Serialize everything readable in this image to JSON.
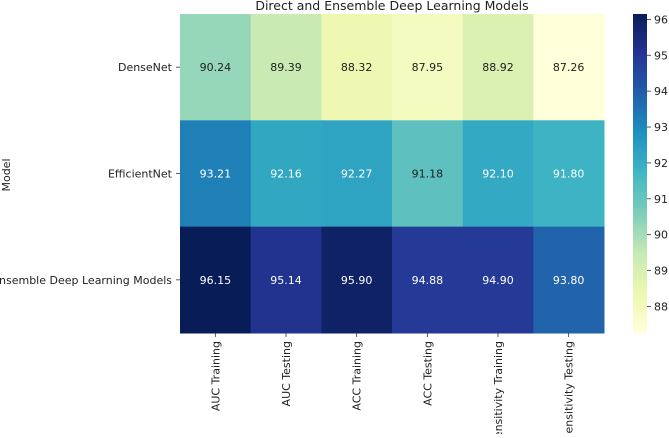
{
  "chart_data": {
    "type": "heatmap",
    "title": "Direct and Ensemble Deep Learning Models",
    "ylabel": "Model",
    "xlabel": "",
    "rows": [
      "DenseNet",
      "EfficientNet",
      "Ensemble Deep Learning Models"
    ],
    "columns": [
      "AUC Training",
      "AUC Testing",
      "ACC Training",
      "ACC Testing",
      "Sensitivity Training",
      "Sensitivity Testing"
    ],
    "values": [
      [
        90.24,
        89.39,
        88.32,
        87.95,
        88.92,
        87.26
      ],
      [
        93.21,
        92.16,
        92.27,
        91.18,
        92.1,
        91.8
      ],
      [
        96.15,
        95.14,
        95.9,
        94.88,
        94.9,
        93.8
      ]
    ],
    "value_labels": [
      [
        "90.24",
        "89.39",
        "88.32",
        "87.95",
        "88.92",
        "87.26"
      ],
      [
        "93.21",
        "92.16",
        "92.27",
        "91.18",
        "92.10",
        "91.80"
      ],
      [
        "96.15",
        "95.14",
        "95.90",
        "94.88",
        "94.90",
        "93.80"
      ]
    ],
    "colorbar": {
      "ticks": [
        "88",
        "89",
        "90",
        "91",
        "92",
        "93",
        "94",
        "95",
        "96"
      ],
      "range": [
        87.26,
        96.15
      ]
    },
    "colormap": "YlGnBu",
    "colormap_stops": [
      "#ffffd9",
      "#edf8b1",
      "#c7e9b4",
      "#7fcdbb",
      "#41b6c4",
      "#1d91c0",
      "#225ea8",
      "#253494",
      "#081d58"
    ]
  }
}
